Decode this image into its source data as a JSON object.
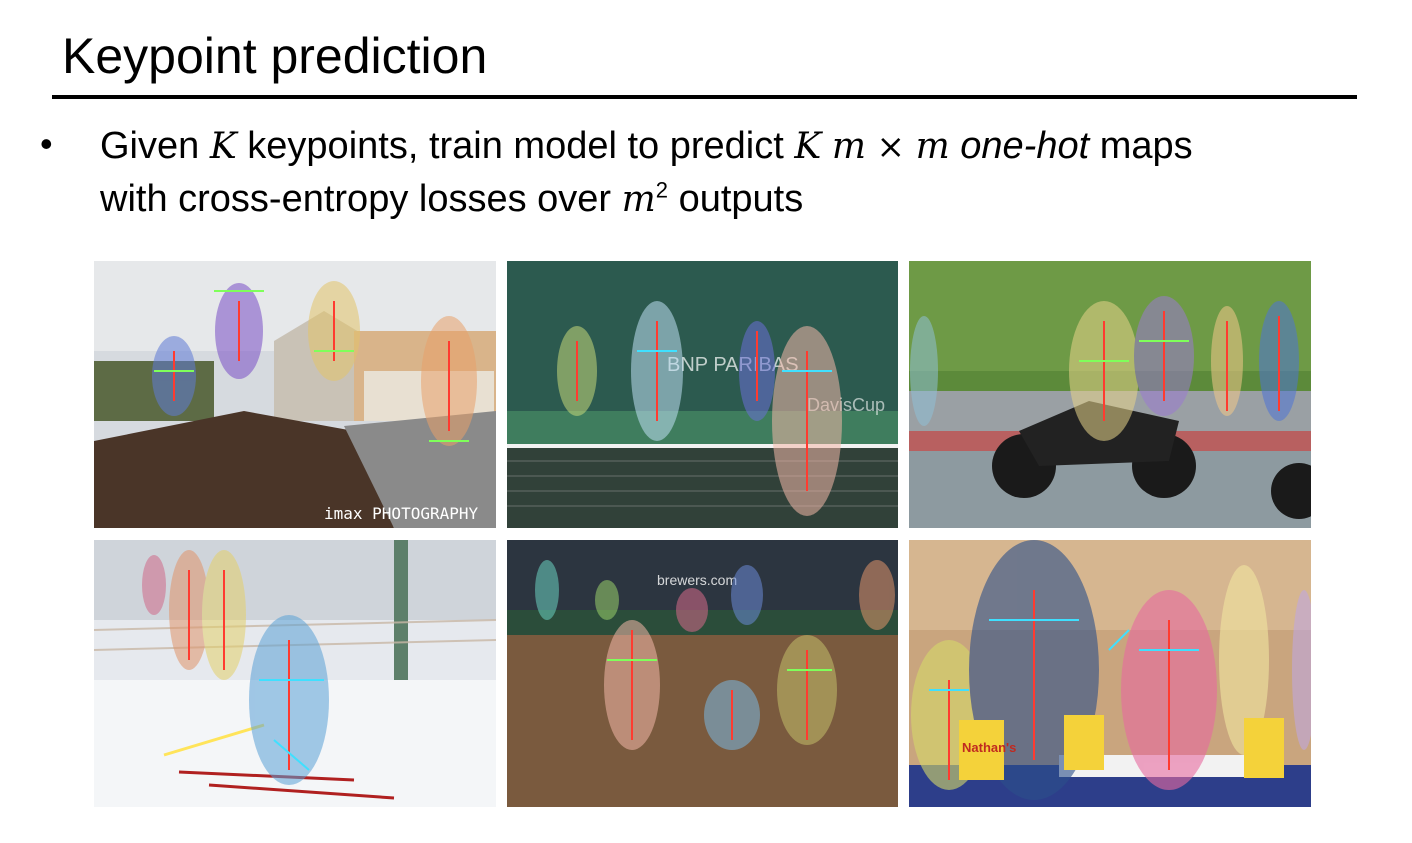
{
  "slide": {
    "title": "Keypoint prediction",
    "bullet": {
      "marker": "•",
      "part1": "Given ",
      "var_k1": "K",
      "part2": " keypoints, train model to predict ",
      "var_k2": "K",
      "var_m1": "m",
      "times": "×",
      "var_m2": "m",
      "emph": "one-hot",
      "part3": " maps",
      "part4": "with cross-entropy losses over ",
      "var_m3": "m",
      "sup": "2",
      "part5": " outputs"
    }
  },
  "figures": {
    "images": [
      {
        "name": "skateboard-jumpers",
        "watermark": "imax PHOTOGRAPHY"
      },
      {
        "name": "tennis-players",
        "banner": "BNP PARIBAS",
        "banner2": "DavisCup"
      },
      {
        "name": "motorcycle-riders"
      },
      {
        "name": "skiers"
      },
      {
        "name": "baseball-players",
        "banner": "brewers.com"
      },
      {
        "name": "kids-interview",
        "cup_text": "Nathan's"
      }
    ]
  },
  "colors": {
    "title_rule": "#000000",
    "pose_red": "#ff3b30",
    "pose_green": "#7fff5a",
    "pose_cyan": "#3fe0ff",
    "pose_yellow": "#ffe45a"
  }
}
